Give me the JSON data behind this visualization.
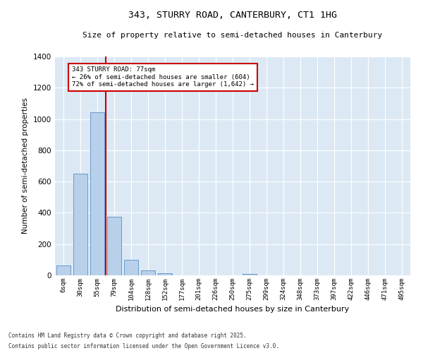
{
  "title1": "343, STURRY ROAD, CANTERBURY, CT1 1HG",
  "title2": "Size of property relative to semi-detached houses in Canterbury",
  "xlabel": "Distribution of semi-detached houses by size in Canterbury",
  "ylabel": "Number of semi-detached properties",
  "categories": [
    "6sqm",
    "30sqm",
    "55sqm",
    "79sqm",
    "104sqm",
    "128sqm",
    "152sqm",
    "177sqm",
    "201sqm",
    "226sqm",
    "250sqm",
    "275sqm",
    "299sqm",
    "324sqm",
    "348sqm",
    "373sqm",
    "397sqm",
    "422sqm",
    "446sqm",
    "471sqm",
    "495sqm"
  ],
  "values": [
    65,
    650,
    1045,
    375,
    100,
    30,
    15,
    0,
    0,
    0,
    0,
    10,
    0,
    0,
    0,
    0,
    0,
    0,
    0,
    0,
    0
  ],
  "bar_color": "#b8d0ea",
  "bar_edge_color": "#6699cc",
  "ref_line_color": "#cc0000",
  "annotation_box_color": "#cc0000",
  "background_color": "#dce9f5",
  "grid_color": "#ffffff",
  "ylim": [
    0,
    1400
  ],
  "yticks": [
    0,
    200,
    400,
    600,
    800,
    1000,
    1200,
    1400
  ],
  "footer1": "Contains HM Land Registry data © Crown copyright and database right 2025.",
  "footer2": "Contains public sector information licensed under the Open Government Licence v3.0."
}
